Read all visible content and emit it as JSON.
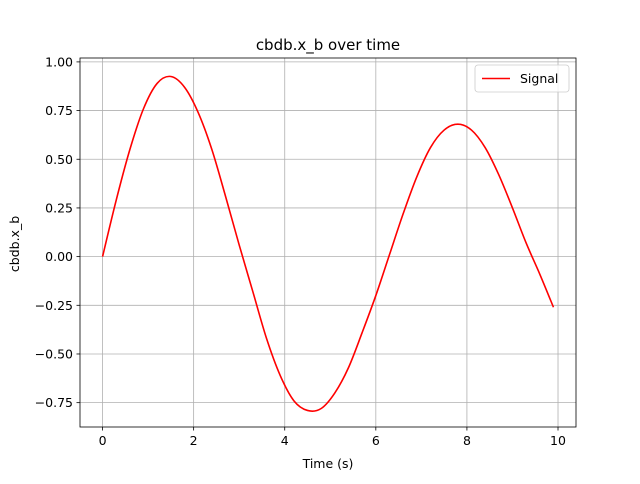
{
  "chart_data": {
    "type": "line",
    "title": "cbdb.x_b over time",
    "xlabel": "Time (s)",
    "ylabel": "cbdb.x_b",
    "xlim": [
      -0.495,
      10.395
    ],
    "ylim": [
      -0.875,
      1.02
    ],
    "xticks": [
      0,
      2,
      4,
      6,
      8,
      10
    ],
    "xtick_labels": [
      "0",
      "2",
      "4",
      "6",
      "8",
      "10"
    ],
    "yticks": [
      -0.75,
      -0.5,
      -0.25,
      0.0,
      0.25,
      0.5,
      0.75,
      1.0
    ],
    "ytick_labels": [
      "−0.75",
      "−0.50",
      "−0.25",
      "0.00",
      "0.25",
      "0.50",
      "0.75",
      "1.00"
    ],
    "grid": true,
    "legend": {
      "position": "top-right",
      "entries": [
        "Signal"
      ]
    },
    "series": [
      {
        "name": "Signal",
        "color": "#ff0000",
        "x": [
          0,
          0.3,
          0.6,
          0.9,
          1.2,
          1.5,
          1.8,
          2.1,
          2.4,
          2.7,
          3.0,
          3.3,
          3.6,
          3.9,
          4.2,
          4.5,
          4.8,
          5.1,
          5.4,
          5.7,
          6.0,
          6.3,
          6.6,
          6.9,
          7.2,
          7.5,
          7.8,
          8.1,
          8.4,
          8.7,
          9.0,
          9.3,
          9.6,
          9.9
        ],
        "y": [
          0.0,
          0.29,
          0.55,
          0.76,
          0.89,
          0.925,
          0.87,
          0.74,
          0.55,
          0.31,
          0.06,
          -0.18,
          -0.42,
          -0.61,
          -0.74,
          -0.79,
          -0.78,
          -0.7,
          -0.57,
          -0.39,
          -0.2,
          0.01,
          0.22,
          0.41,
          0.56,
          0.65,
          0.68,
          0.65,
          0.56,
          0.42,
          0.25,
          0.07,
          -0.09,
          -0.26
        ]
      }
    ]
  }
}
